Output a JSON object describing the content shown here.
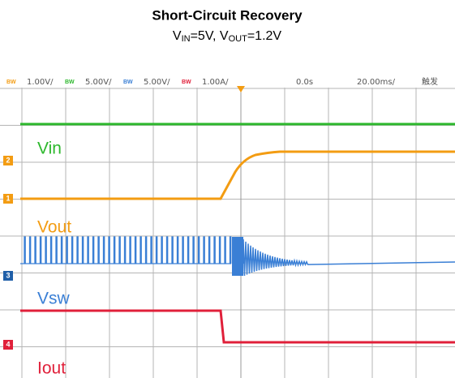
{
  "title": "Short-Circuit Recovery",
  "subtitle": [
    "V",
    "IN",
    "=5V, V",
    "OUT",
    "=1.2V"
  ],
  "scope": {
    "channels": [
      {
        "tag": "BW",
        "scale": "1.00V/"
      },
      {
        "tag": "BW",
        "scale": "5.00V/"
      },
      {
        "tag": "BW",
        "scale": "5.00V/"
      },
      {
        "tag": "BW",
        "scale": "1.00A/"
      }
    ],
    "delay": "0.0s",
    "timebase": "20.00ms/",
    "trigger": "触发",
    "markers": [
      "2",
      "1",
      "3",
      "4"
    ],
    "traces": [
      "Vin",
      "Vout",
      "Vsw",
      "Iout"
    ]
  }
}
